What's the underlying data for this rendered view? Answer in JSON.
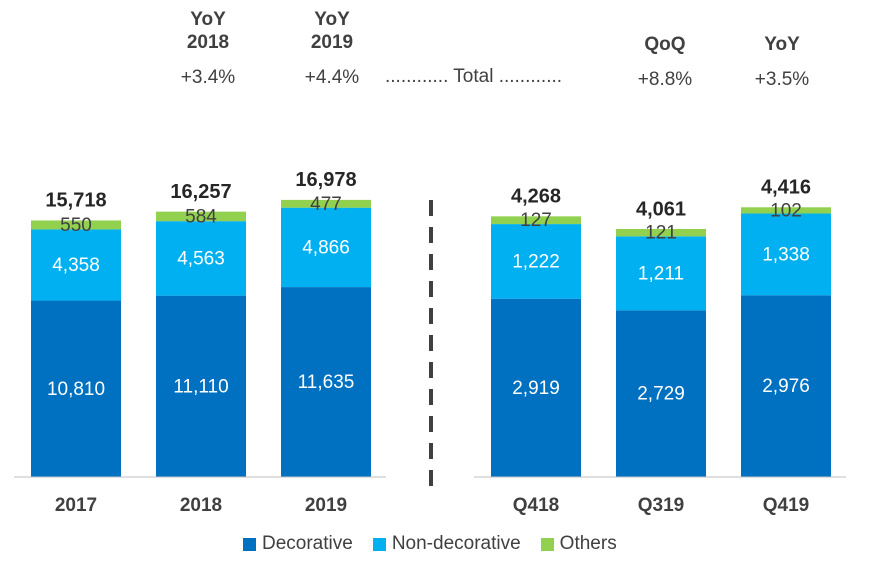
{
  "header": {
    "items": [
      {
        "title_line1": "YoY",
        "title_line2": "2018",
        "value": "+3.4%"
      },
      {
        "title_line1": "YoY",
        "title_line2": "2019",
        "value": "+4.4%"
      },
      {
        "title_line1": "QoQ",
        "title_line2": "",
        "value": "+8.8%"
      },
      {
        "title_line1": "YoY",
        "title_line2": "",
        "value": "+3.5%"
      }
    ],
    "total_label": "............ Total ............"
  },
  "chart_data": {
    "type": "bar",
    "stacked": true,
    "categories": [
      "2017",
      "2018",
      "2019",
      "Q418",
      "Q319",
      "Q419"
    ],
    "series": [
      {
        "name": "Decorative",
        "color": "#0070C0",
        "values": [
          10810,
          11110,
          11635,
          2919,
          2729,
          2976
        ]
      },
      {
        "name": "Non-decorative",
        "color": "#00B0F0",
        "values": [
          4358,
          4563,
          4866,
          1222,
          1211,
          1338
        ]
      },
      {
        "name": "Others",
        "color": "#92D050",
        "values": [
          550,
          584,
          477,
          127,
          121,
          102
        ]
      }
    ],
    "totals": [
      "15,718",
      "16,257",
      "16,978",
      "4,268",
      "4,061",
      "4,416"
    ],
    "value_labels": [
      [
        "10,810",
        "11,110",
        "11,635",
        "2,919",
        "2,729",
        "2,976"
      ],
      [
        "4,358",
        "4,563",
        "4,866",
        "1,222",
        "1,211",
        "1,338"
      ],
      [
        "550",
        "584",
        "477",
        "127",
        "121",
        "102"
      ]
    ],
    "groups": [
      {
        "categories": [
          0,
          1,
          2
        ],
        "ylim": [
          0,
          17400
        ]
      },
      {
        "categories": [
          3,
          4,
          5
        ],
        "ylim": [
          0,
          4650
        ]
      }
    ],
    "legend_position": "bottom",
    "grid": false
  }
}
